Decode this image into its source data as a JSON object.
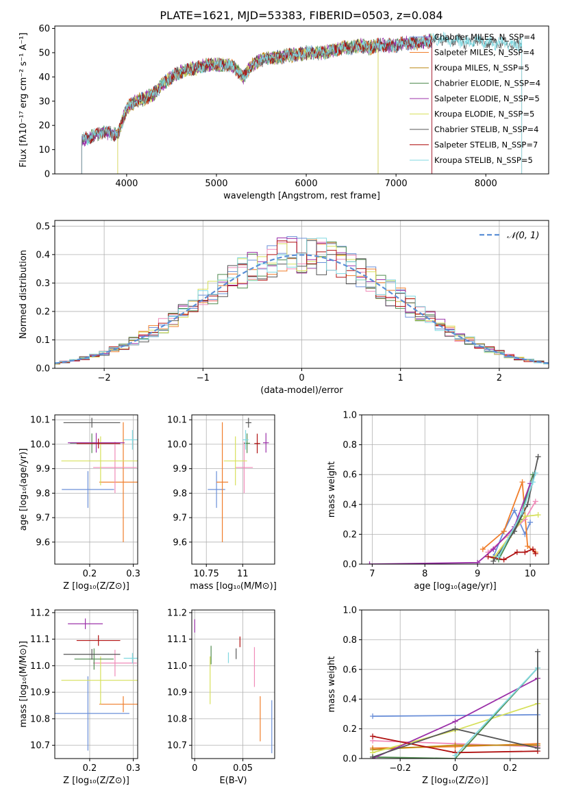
{
  "figure_title": "PLATE=1621, MJD=53383, FIBERID=0503, z=0.084",
  "model_colors": [
    "#6a8fd8",
    "#f07d2a",
    "#b8860b",
    "#4e8a4e",
    "#9b30a8",
    "#d6e05a",
    "#555555",
    "#b01010",
    "#7fd8e0"
  ],
  "pink_color": "#f08ab8",
  "chart_data": [
    {
      "id": "spectrum",
      "type": "line",
      "title": "",
      "xlabel": "wavelength [Angstrom, rest frame]",
      "ylabel": "Flux [fλ10⁻¹⁷ erg cm⁻² s⁻¹ A⁻¹]",
      "xlim": [
        3200,
        8700
      ],
      "ylim": [
        0,
        61
      ],
      "xticks": [
        4000,
        5000,
        6000,
        7000,
        8000
      ],
      "yticks": [
        0,
        10,
        20,
        30,
        40,
        50,
        60
      ],
      "grid": false,
      "legend": "top-right",
      "legend_entries": [
        "Chabrier MILES, N_SSP=4",
        "Salpeter MILES, N_SSP=4",
        "Kroupa MILES, N_SSP=5",
        "Chabrier ELODIE, N_SSP=4",
        "Salpeter ELODIE, N_SSP=5",
        "Kroupa ELODIE, N_SSP=5",
        "Chabrier STELIB, N_SSP=4",
        "Salpeter STELIB, N_SSP=7",
        "Kroupa STELIB, N_SSP=5"
      ],
      "series_range": [
        [
          3500,
          7400
        ],
        [
          3500,
          7400
        ],
        [
          3900,
          6800
        ],
        [
          3500,
          7400
        ],
        [
          3500,
          7400
        ],
        [
          3900,
          6800
        ],
        [
          3500,
          8400
        ],
        [
          3500,
          7400
        ],
        [
          3500,
          8400
        ]
      ],
      "continuum_x": [
        3500,
        3600,
        3700,
        3800,
        3900,
        4000,
        4100,
        4200,
        4300,
        4400,
        4500,
        4600,
        4700,
        4800,
        4900,
        5000,
        5100,
        5200,
        5300,
        5400,
        5500,
        5600,
        5700,
        5800,
        5900,
        6000,
        6100,
        6200,
        6300,
        6400,
        6500,
        6600,
        6700,
        6800,
        6900,
        7000,
        7100,
        7200,
        7300,
        7400,
        7500,
        7600,
        7700,
        7800,
        7900,
        8000,
        8100,
        8200,
        8300,
        8400
      ],
      "continuum_y": [
        14,
        15,
        17,
        17,
        16,
        27,
        30,
        31,
        33,
        37,
        40,
        42,
        43,
        44,
        45,
        45,
        45,
        44,
        40,
        45,
        47,
        48,
        48,
        49,
        49,
        50,
        50,
        50,
        51,
        52,
        52,
        53,
        52,
        53,
        53,
        53,
        54,
        54,
        54,
        55,
        56,
        55,
        55,
        54,
        55,
        54,
        54,
        54,
        53,
        54
      ]
    },
    {
      "id": "residuals",
      "type": "histogram",
      "title": "",
      "xlabel": "(data-model)/error",
      "ylabel": "Normed distribution",
      "xlim": [
        -2.5,
        2.5
      ],
      "ylim": [
        0,
        0.52
      ],
      "xticks": [
        -2,
        -1,
        0,
        1,
        2
      ],
      "yticks": [
        0.0,
        0.1,
        0.2,
        0.3,
        0.4,
        0.5
      ],
      "grid": true,
      "legend": "top-right",
      "legend_entries": [
        "𝒩(0, 1)"
      ],
      "bin_width": 0.1
    },
    {
      "id": "age-vs-Z",
      "type": "scatter",
      "xlabel": "Z [log₁₀(Z/Z⊙)]",
      "ylabel": "age  [log₁₀(age/yr)]",
      "xlim": [
        0.12,
        0.31
      ],
      "ylim": [
        9.51,
        10.12
      ],
      "xticks": [
        0.2,
        0.3
      ],
      "yticks": [
        9.6,
        9.7,
        9.8,
        9.9,
        10.0,
        10.1
      ],
      "grid": true,
      "points": [
        {
          "x": 0.196,
          "xerr": 0.06,
          "y": 9.815,
          "yerr": 0.075,
          "c": 0
        },
        {
          "x": 0.277,
          "xerr": 0.055,
          "y": 9.845,
          "yerr": 0.245,
          "c": 1
        },
        {
          "x": 0.258,
          "xerr": 0.05,
          "y": 9.905,
          "yerr": 0.105,
          "c": 9
        },
        {
          "x": 0.225,
          "xerr": 0.09,
          "y": 9.932,
          "yerr": 0.1,
          "c": 5
        },
        {
          "x": 0.205,
          "xerr": 0.05,
          "y": 10.004,
          "yerr": 0.04,
          "c": 3
        },
        {
          "x": 0.215,
          "xerr": 0.065,
          "y": 10.006,
          "yerr": 0.04,
          "c": 4
        },
        {
          "x": 0.22,
          "xerr": 0.05,
          "y": 10.003,
          "yerr": 0.02,
          "c": 7
        },
        {
          "x": 0.205,
          "xerr": 0.065,
          "y": 10.088,
          "yerr": 0.02,
          "c": 6
        },
        {
          "x": 0.298,
          "xerr": 0.02,
          "y": 10.018,
          "yerr": 0.04,
          "c": 8
        }
      ]
    },
    {
      "id": "age-vs-mass",
      "type": "scatter",
      "xlabel": "mass [log₁₀(M/M⊙)]",
      "ylabel": "",
      "xlim": [
        10.65,
        11.22
      ],
      "ylim": [
        9.51,
        10.12
      ],
      "xticks": [
        10.75,
        11.0
      ],
      "yticks": [
        9.6,
        9.7,
        9.8,
        9.9,
        10.0,
        10.1
      ],
      "grid": true,
      "points": [
        {
          "x": 10.82,
          "xerr": 0.06,
          "y": 9.815,
          "yerr": 0.075,
          "c": 0
        },
        {
          "x": 10.86,
          "xerr": 0.04,
          "y": 9.845,
          "yerr": 0.245,
          "c": 1
        },
        {
          "x": 11.01,
          "xerr": 0.06,
          "y": 9.905,
          "yerr": 0.105,
          "c": 9
        },
        {
          "x": 10.95,
          "xerr": 0.08,
          "y": 9.932,
          "yerr": 0.1,
          "c": 5
        },
        {
          "x": 11.03,
          "xerr": 0.02,
          "y": 10.004,
          "yerr": 0.04,
          "c": 3
        },
        {
          "x": 11.16,
          "xerr": 0.02,
          "y": 10.006,
          "yerr": 0.04,
          "c": 4
        },
        {
          "x": 11.1,
          "xerr": 0.02,
          "y": 10.003,
          "yerr": 0.04,
          "c": 7
        },
        {
          "x": 11.04,
          "xerr": 0.02,
          "y": 10.088,
          "yerr": 0.02,
          "c": 6
        },
        {
          "x": 11.02,
          "xerr": 0.02,
          "y": 10.018,
          "yerr": 0.04,
          "c": 8
        }
      ]
    },
    {
      "id": "weight-vs-age",
      "type": "line",
      "xlabel": "age  [log₁₀(age/yr)]",
      "ylabel": "mass weight",
      "xlim": [
        6.8,
        10.35
      ],
      "ylim": [
        0,
        1
      ],
      "xticks": [
        7,
        8,
        9,
        10
      ],
      "yticks": [
        0.0,
        0.2,
        0.4,
        0.6,
        0.8,
        1.0
      ],
      "grid": true,
      "series": [
        {
          "c": 0,
          "x": [
            9.3,
            9.5,
            9.7,
            9.9,
            10.0
          ],
          "y": [
            0.05,
            0.22,
            0.36,
            0.2,
            0.28
          ]
        },
        {
          "c": 1,
          "x": [
            9.1,
            9.5,
            9.85,
            9.95,
            10.1
          ],
          "y": [
            0.1,
            0.22,
            0.55,
            0.12,
            0.08
          ]
        },
        {
          "c": 9,
          "x": [
            9.2,
            9.6,
            9.9,
            10.1
          ],
          "y": [
            0.08,
            0.2,
            0.3,
            0.42
          ]
        },
        {
          "c": 5,
          "x": [
            9.3,
            9.6,
            9.9,
            10.15
          ],
          "y": [
            0.04,
            0.18,
            0.32,
            0.33
          ]
        },
        {
          "c": 3,
          "x": [
            9.4,
            9.8,
            10.05
          ],
          "y": [
            0.03,
            0.3,
            0.6
          ]
        },
        {
          "c": 4,
          "x": [
            6.95,
            9.0,
            9.3,
            9.7,
            10.0
          ],
          "y": [
            0.0,
            0.01,
            0.1,
            0.25,
            0.54
          ]
        },
        {
          "c": 7,
          "x": [
            9.2,
            9.5,
            9.75,
            9.9,
            10.05,
            10.1
          ],
          "y": [
            0.05,
            0.03,
            0.08,
            0.08,
            0.1,
            0.07
          ]
        },
        {
          "c": 6,
          "x": [
            9.3,
            9.7,
            9.95,
            10.15
          ],
          "y": [
            0.02,
            0.22,
            0.4,
            0.72
          ]
        },
        {
          "c": 8,
          "x": [
            9.4,
            9.85,
            10.05,
            10.1
          ],
          "y": [
            0.05,
            0.35,
            0.55,
            0.61
          ]
        }
      ]
    },
    {
      "id": "mass-vs-Z",
      "type": "scatter",
      "xlabel": "Z [log₁₀(Z/Z⊙)]",
      "ylabel": "mass [log₁₀(M/M⊙)]",
      "xlim": [
        0.12,
        0.31
      ],
      "ylim": [
        10.65,
        11.21
      ],
      "xticks": [
        0.2,
        0.3
      ],
      "yticks": [
        10.7,
        10.8,
        10.9,
        11.0,
        11.1,
        11.2
      ],
      "grid": true,
      "points": [
        {
          "x": 0.196,
          "xerr": 0.095,
          "y": 10.82,
          "yerr": 0.14,
          "c": 0
        },
        {
          "x": 0.258,
          "xerr": 0.05,
          "y": 11.01,
          "yerr": 0.05,
          "c": 9
        },
        {
          "x": 0.277,
          "xerr": 0.055,
          "y": 10.855,
          "yerr": 0.03,
          "c": 1
        },
        {
          "x": 0.225,
          "xerr": 0.09,
          "y": 10.945,
          "yerr": 0.09,
          "c": 5
        },
        {
          "x": 0.21,
          "xerr": 0.045,
          "y": 11.025,
          "yerr": 0.04,
          "c": 3
        },
        {
          "x": 0.19,
          "xerr": 0.04,
          "y": 11.158,
          "yerr": 0.02,
          "c": 4
        },
        {
          "x": 0.22,
          "xerr": 0.05,
          "y": 11.095,
          "yerr": 0.02,
          "c": 7
        },
        {
          "x": 0.205,
          "xerr": 0.065,
          "y": 11.043,
          "yerr": 0.02,
          "c": 6
        },
        {
          "x": 0.298,
          "xerr": 0.02,
          "y": 11.028,
          "yerr": 0.02,
          "c": 8
        }
      ]
    },
    {
      "id": "mass-vs-ebv",
      "type": "scatter",
      "xlabel": "E(B-V)",
      "ylabel": "",
      "xlim": [
        -0.003,
        0.083
      ],
      "ylim": [
        10.65,
        11.21
      ],
      "xticks": [
        0.0,
        0.05
      ],
      "yticks": [
        10.7,
        10.8,
        10.9,
        11.0,
        11.1,
        11.2
      ],
      "grid": true,
      "points": [
        {
          "x": 0.08,
          "xerr": 0,
          "y": 10.77,
          "yerr": 0.1,
          "c": 0
        },
        {
          "x": 0.068,
          "xerr": 0,
          "y": 10.8,
          "yerr": 0.085,
          "c": 1
        },
        {
          "x": 0.062,
          "xerr": 0,
          "y": 10.995,
          "yerr": 0.075,
          "c": 9
        },
        {
          "x": 0.016,
          "xerr": 0,
          "y": 10.945,
          "yerr": 0.09,
          "c": 5
        },
        {
          "x": 0.017,
          "xerr": 0,
          "y": 11.04,
          "yerr": 0.035,
          "c": 3
        },
        {
          "x": 0.0,
          "xerr": 0,
          "y": 11.15,
          "yerr": 0.025,
          "c": 4
        },
        {
          "x": 0.047,
          "xerr": 0,
          "y": 11.09,
          "yerr": 0.02,
          "c": 7
        },
        {
          "x": 0.043,
          "xerr": 0,
          "y": 11.045,
          "yerr": 0.02,
          "c": 6
        },
        {
          "x": 0.035,
          "xerr": 0,
          "y": 11.03,
          "yerr": 0.02,
          "c": 8
        }
      ]
    },
    {
      "id": "weight-vs-Z",
      "type": "line",
      "xlabel": "Z [log₁₀(Z/Z⊙)]",
      "ylabel": "mass weight",
      "xlim": [
        -0.34,
        0.34
      ],
      "ylim": [
        0,
        1
      ],
      "xticks": [
        -0.2,
        0.0,
        0.2
      ],
      "yticks": [
        0.0,
        0.2,
        0.4,
        0.6,
        0.8,
        1.0
      ],
      "grid": true,
      "series": [
        {
          "c": 0,
          "x": [
            -0.3,
            0.3
          ],
          "y": [
            0.285,
            0.295
          ]
        },
        {
          "c": 9,
          "x": [
            -0.3,
            0.0,
            0.3
          ],
          "y": [
            0.12,
            0.1,
            0.08
          ]
        },
        {
          "c": 1,
          "x": [
            -0.3,
            0.0,
            0.3
          ],
          "y": [
            0.07,
            0.08,
            0.1
          ]
        },
        {
          "c": 2,
          "x": [
            -0.3,
            0.0,
            0.3
          ],
          "y": [
            0.06,
            0.09,
            0.09
          ]
        },
        {
          "c": 5,
          "x": [
            -0.3,
            0.0,
            0.3
          ],
          "y": [
            0.04,
            0.19,
            0.37
          ]
        },
        {
          "c": 3,
          "x": [
            -0.3,
            0.0,
            0.3
          ],
          "y": [
            0.01,
            0.0,
            0.61
          ]
        },
        {
          "c": 4,
          "x": [
            -0.3,
            0.0,
            0.3
          ],
          "y": [
            0.0,
            0.25,
            0.54
          ]
        },
        {
          "c": 7,
          "x": [
            -0.3,
            0.0,
            0.3
          ],
          "y": [
            0.15,
            0.04,
            0.05
          ]
        },
        {
          "c": 6,
          "x": [
            -0.3,
            0.0,
            0.3
          ],
          "y": [
            0.01,
            0.2,
            0.07
          ]
        },
        {
          "c": 8,
          "x": [
            0.0,
            0.3
          ],
          "y": [
            0.02,
            0.61
          ]
        },
        {
          "c": 6,
          "x": [
            0.3,
            0.3
          ],
          "y": [
            0.07,
            0.72
          ]
        }
      ]
    }
  ]
}
